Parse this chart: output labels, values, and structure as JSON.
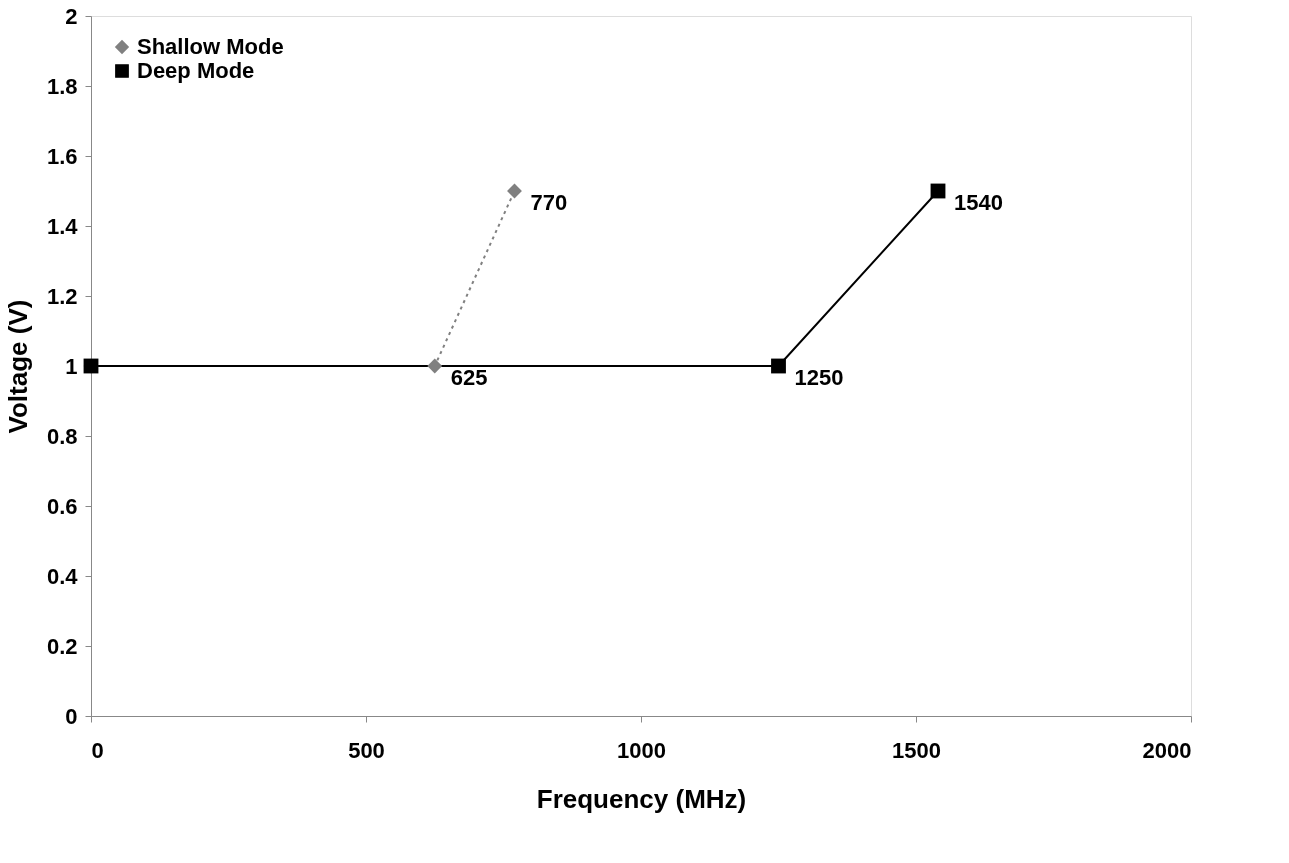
{
  "chart_data": {
    "type": "line",
    "xlabel": "Frequency (MHz)",
    "ylabel": "Voltage (V)",
    "xlim": [
      0,
      2000
    ],
    "xticks": [
      0,
      500,
      1000,
      1500,
      2000
    ],
    "ylim": [
      0,
      2
    ],
    "yticks": [
      0,
      0.2,
      0.4,
      0.6,
      0.8,
      1,
      1.2,
      1.4,
      1.6,
      1.8,
      2
    ],
    "grid": false,
    "legend": "top left",
    "series": [
      {
        "name": "Shallow Mode",
        "color": "#808080",
        "marker": "diamond",
        "line_style": "dotted",
        "x": [
          0,
          625,
          770
        ],
        "values": [
          1,
          1,
          1.5
        ]
      },
      {
        "name": "Deep Mode",
        "color": "#000000",
        "marker": "square",
        "line_style": "solid",
        "x": [
          0,
          1250,
          1540
        ],
        "values": [
          1,
          1,
          1.5
        ]
      }
    ],
    "annotations": [
      {
        "text": "625",
        "x": 625,
        "y": 1
      },
      {
        "text": "770",
        "x": 770,
        "y": 1.5
      },
      {
        "text": "1250",
        "x": 1250,
        "y": 1
      },
      {
        "text": "1540",
        "x": 1540,
        "y": 1.5
      }
    ]
  }
}
